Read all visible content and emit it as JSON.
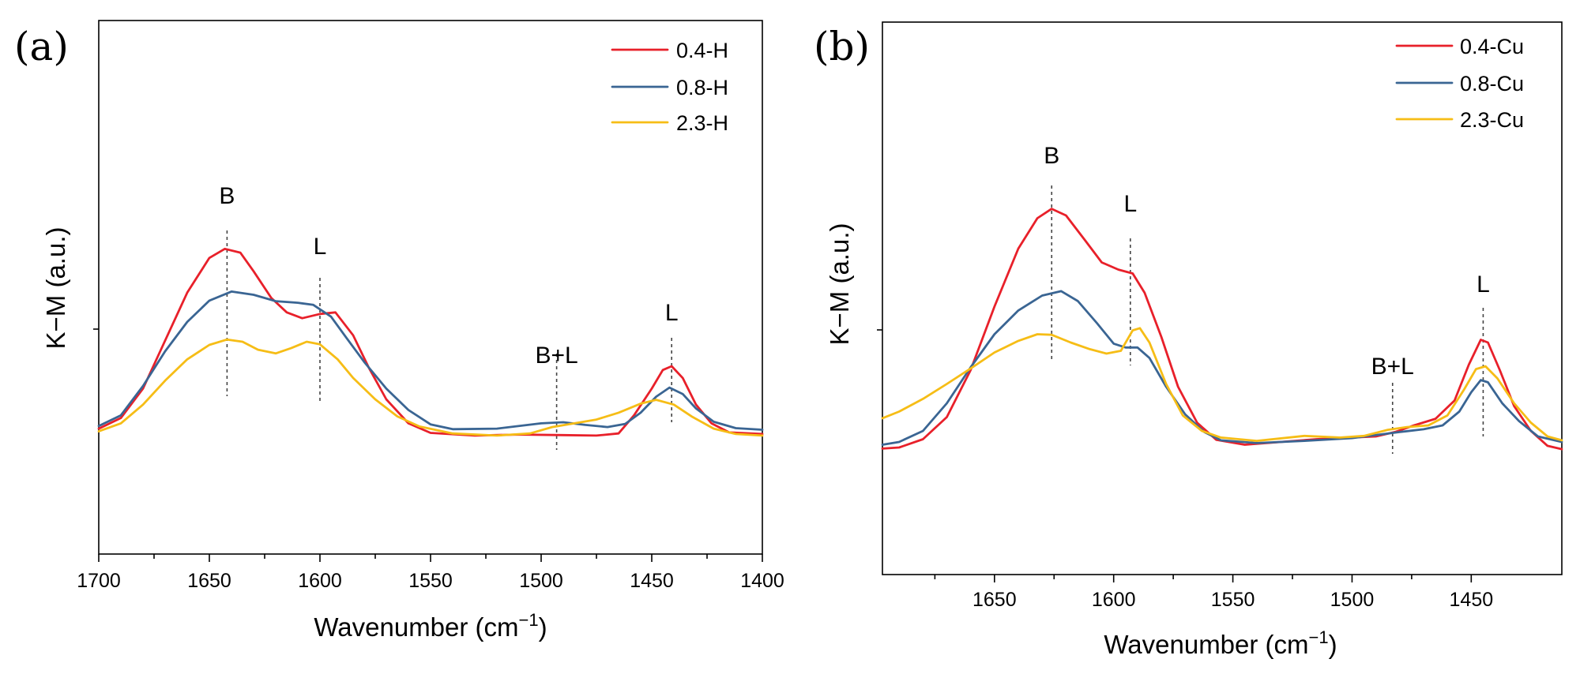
{
  "chart_data": [
    {
      "type": "line",
      "panel_label": "(a)",
      "xlabel": "Wavenumber (cm",
      "xlabel_sup": "−1",
      "xlabel_close": ")",
      "ylabel": "K−M (a.u.)",
      "xlim": [
        1700,
        1400
      ],
      "ylim": [
        0,
        100
      ],
      "x_ticks": [
        "1700",
        "1650",
        "1600",
        "1550",
        "1500",
        "1450",
        "1400"
      ],
      "legend_position": "top-right",
      "series": [
        {
          "name": "0.4-H",
          "color": "#e8202a",
          "points": [
            [
              1700,
              23.5
            ],
            [
              1690,
              25.5
            ],
            [
              1680,
              31
            ],
            [
              1670,
              40
            ],
            [
              1660,
              49
            ],
            [
              1650,
              55.5
            ],
            [
              1643,
              57.2
            ],
            [
              1636,
              56.5
            ],
            [
              1630,
              53
            ],
            [
              1622,
              48
            ],
            [
              1615,
              45.3
            ],
            [
              1608,
              44.2
            ],
            [
              1600,
              45
            ],
            [
              1593,
              45.3
            ],
            [
              1585,
              41
            ],
            [
              1578,
              35
            ],
            [
              1570,
              29
            ],
            [
              1560,
              24.5
            ],
            [
              1550,
              22.7
            ],
            [
              1530,
              22.2
            ],
            [
              1510,
              22.4
            ],
            [
              1490,
              22.3
            ],
            [
              1475,
              22.2
            ],
            [
              1465,
              22.6
            ],
            [
              1458,
              26
            ],
            [
              1450,
              31
            ],
            [
              1445,
              34.5
            ],
            [
              1441,
              35.2
            ],
            [
              1436,
              33
            ],
            [
              1430,
              28
            ],
            [
              1423,
              24.5
            ],
            [
              1415,
              22.8
            ],
            [
              1400,
              22.5
            ]
          ]
        },
        {
          "name": "0.8-H",
          "color": "#3a6593",
          "points": [
            [
              1700,
              24
            ],
            [
              1690,
              26
            ],
            [
              1680,
              31.5
            ],
            [
              1670,
              38
            ],
            [
              1660,
              43.5
            ],
            [
              1650,
              47.5
            ],
            [
              1640,
              49.2
            ],
            [
              1630,
              48.6
            ],
            [
              1620,
              47.4
            ],
            [
              1610,
              47.1
            ],
            [
              1603,
              46.7
            ],
            [
              1595,
              44.5
            ],
            [
              1588,
              40.5
            ],
            [
              1580,
              36
            ],
            [
              1570,
              31
            ],
            [
              1560,
              27
            ],
            [
              1550,
              24.3
            ],
            [
              1540,
              23.4
            ],
            [
              1520,
              23.5
            ],
            [
              1500,
              24.5
            ],
            [
              1490,
              24.7
            ],
            [
              1480,
              24.2
            ],
            [
              1470,
              23.8
            ],
            [
              1462,
              24.4
            ],
            [
              1455,
              26.5
            ],
            [
              1448,
              29.5
            ],
            [
              1442,
              31.2
            ],
            [
              1436,
              30
            ],
            [
              1430,
              27.3
            ],
            [
              1422,
              24.8
            ],
            [
              1412,
              23.6
            ],
            [
              1400,
              23.3
            ]
          ]
        },
        {
          "name": "2.3-H",
          "color": "#f6bd16",
          "points": [
            [
              1700,
              23
            ],
            [
              1690,
              24.5
            ],
            [
              1680,
              28
            ],
            [
              1670,
              32.5
            ],
            [
              1660,
              36.5
            ],
            [
              1650,
              39.2
            ],
            [
              1642,
              40.2
            ],
            [
              1635,
              39.8
            ],
            [
              1628,
              38.3
            ],
            [
              1620,
              37.6
            ],
            [
              1613,
              38.6
            ],
            [
              1606,
              39.8
            ],
            [
              1600,
              39.3
            ],
            [
              1592,
              36.5
            ],
            [
              1585,
              33
            ],
            [
              1575,
              29
            ],
            [
              1565,
              25.8
            ],
            [
              1555,
              23.9
            ],
            [
              1540,
              22.6
            ],
            [
              1520,
              22.2
            ],
            [
              1505,
              22.6
            ],
            [
              1495,
              23.8
            ],
            [
              1485,
              24.5
            ],
            [
              1475,
              25.2
            ],
            [
              1465,
              26.5
            ],
            [
              1455,
              28.2
            ],
            [
              1448,
              28.9
            ],
            [
              1440,
              28
            ],
            [
              1432,
              25.8
            ],
            [
              1422,
              23.5
            ],
            [
              1412,
              22.5
            ],
            [
              1400,
              22.2
            ]
          ]
        }
      ],
      "annotations": [
        {
          "text": "B",
          "x": 1642
        },
        {
          "text": "L",
          "x": 1600
        },
        {
          "text": "B+L",
          "x": 1493
        },
        {
          "text": "L",
          "x": 1441
        }
      ]
    },
    {
      "type": "line",
      "panel_label": "(b)",
      "xlabel": "Wavenumber (cm",
      "xlabel_sup": "−1",
      "xlabel_close": ")",
      "ylabel": "K−M (a.u.)",
      "xlim": [
        1697,
        1412
      ],
      "ylim": [
        0,
        100
      ],
      "x_ticks": [
        "1650",
        "1600",
        "1550",
        "1500",
        "1450"
      ],
      "legend_position": "top-right",
      "series": [
        {
          "name": "0.4-Cu",
          "color": "#e8202a",
          "points": [
            [
              1697,
              22.8
            ],
            [
              1690,
              23
            ],
            [
              1680,
              24.5
            ],
            [
              1670,
              28.5
            ],
            [
              1660,
              37
            ],
            [
              1650,
              48.5
            ],
            [
              1640,
              59
            ],
            [
              1632,
              64.5
            ],
            [
              1626,
              66.2
            ],
            [
              1620,
              65
            ],
            [
              1612,
              60.5
            ],
            [
              1605,
              56.5
            ],
            [
              1598,
              55.2
            ],
            [
              1592,
              54.5
            ],
            [
              1587,
              51
            ],
            [
              1580,
              43
            ],
            [
              1573,
              34
            ],
            [
              1565,
              27.5
            ],
            [
              1557,
              24.4
            ],
            [
              1545,
              23.5
            ],
            [
              1530,
              24
            ],
            [
              1515,
              24.5
            ],
            [
              1500,
              24.8
            ],
            [
              1490,
              25
            ],
            [
              1482,
              25.8
            ],
            [
              1474,
              27
            ],
            [
              1465,
              28.2
            ],
            [
              1457,
              31.5
            ],
            [
              1451,
              38
            ],
            [
              1446,
              42.5
            ],
            [
              1443,
              42
            ],
            [
              1438,
              37
            ],
            [
              1432,
              30.5
            ],
            [
              1425,
              26
            ],
            [
              1418,
              23.3
            ],
            [
              1412,
              22.7
            ]
          ]
        },
        {
          "name": "0.8-Cu",
          "color": "#3a6593",
          "points": [
            [
              1697,
              23.5
            ],
            [
              1690,
              24
            ],
            [
              1680,
              26
            ],
            [
              1670,
              31
            ],
            [
              1660,
              37.5
            ],
            [
              1650,
              43.5
            ],
            [
              1640,
              47.8
            ],
            [
              1630,
              50.5
            ],
            [
              1622,
              51.3
            ],
            [
              1615,
              49.5
            ],
            [
              1607,
              45.5
            ],
            [
              1600,
              41.8
            ],
            [
              1595,
              41.1
            ],
            [
              1590,
              41.1
            ],
            [
              1585,
              39.2
            ],
            [
              1578,
              34
            ],
            [
              1570,
              29
            ],
            [
              1562,
              25.8
            ],
            [
              1555,
              24.3
            ],
            [
              1540,
              23.8
            ],
            [
              1520,
              24.2
            ],
            [
              1500,
              24.7
            ],
            [
              1480,
              25.8
            ],
            [
              1470,
              26.3
            ],
            [
              1462,
              27
            ],
            [
              1455,
              29.5
            ],
            [
              1450,
              33
            ],
            [
              1446,
              35.2
            ],
            [
              1443,
              34.8
            ],
            [
              1437,
              31
            ],
            [
              1430,
              27.8
            ],
            [
              1422,
              25
            ],
            [
              1412,
              24
            ]
          ]
        },
        {
          "name": "2.3-Cu",
          "color": "#f6bd16",
          "points": [
            [
              1697,
              28.3
            ],
            [
              1690,
              29.5
            ],
            [
              1680,
              31.8
            ],
            [
              1670,
              34.5
            ],
            [
              1660,
              37.3
            ],
            [
              1650,
              40.2
            ],
            [
              1640,
              42.3
            ],
            [
              1632,
              43.5
            ],
            [
              1626,
              43.4
            ],
            [
              1618,
              42
            ],
            [
              1610,
              40.8
            ],
            [
              1603,
              40
            ],
            [
              1597,
              40.5
            ],
            [
              1592,
              44.2
            ],
            [
              1589,
              44.6
            ],
            [
              1585,
              42
            ],
            [
              1578,
              34.5
            ],
            [
              1571,
              28.8
            ],
            [
              1563,
              26
            ],
            [
              1555,
              24.8
            ],
            [
              1540,
              24.2
            ],
            [
              1520,
              25.1
            ],
            [
              1505,
              24.8
            ],
            [
              1495,
              25.1
            ],
            [
              1485,
              26.2
            ],
            [
              1477,
              26.7
            ],
            [
              1468,
              27
            ],
            [
              1460,
              28.8
            ],
            [
              1453,
              33.5
            ],
            [
              1448,
              37.2
            ],
            [
              1444,
              37.7
            ],
            [
              1439,
              35.5
            ],
            [
              1432,
              31
            ],
            [
              1425,
              27.5
            ],
            [
              1418,
              25
            ],
            [
              1412,
              24.3
            ]
          ]
        }
      ],
      "annotations": [
        {
          "text": "B",
          "x": 1626
        },
        {
          "text": "L",
          "x": 1593
        },
        {
          "text": "B+L",
          "x": 1483
        },
        {
          "text": "L",
          "x": 1445
        }
      ]
    }
  ]
}
